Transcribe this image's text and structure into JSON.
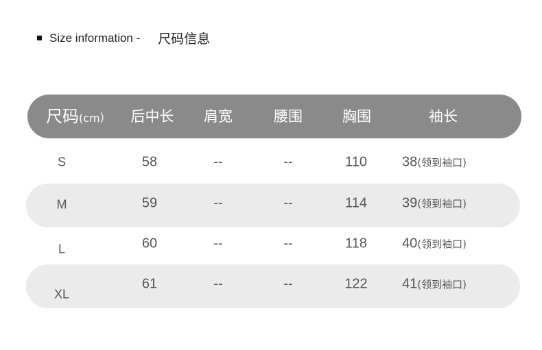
{
  "title": {
    "en": "Size information -",
    "cn": "尺码信息"
  },
  "header": {
    "size": "尺码",
    "unit": "(cm）",
    "columns": [
      "后中长",
      "肩宽",
      "腰围",
      "胸围",
      "袖长"
    ]
  },
  "rows": [
    {
      "size": "S",
      "length": "58",
      "shoulder": "--",
      "waist": "--",
      "chest": "110",
      "sleeve": "38",
      "note": "(领到袖口)"
    },
    {
      "size": "M",
      "length": "59",
      "shoulder": "--",
      "waist": "--",
      "chest": "114",
      "sleeve": "39",
      "note": "(领到袖口)"
    },
    {
      "size": "L",
      "length": "60",
      "shoulder": "--",
      "waist": "--",
      "chest": "118",
      "sleeve": "40",
      "note": "(领到袖口)"
    },
    {
      "size": "XL",
      "length": "61",
      "shoulder": "--",
      "waist": "--",
      "chest": "122",
      "sleeve": "41",
      "note": "(领到袖口)"
    }
  ],
  "colors": {
    "header_bg": "#8a8a8a",
    "stripe_bg": "#ebebeb"
  }
}
